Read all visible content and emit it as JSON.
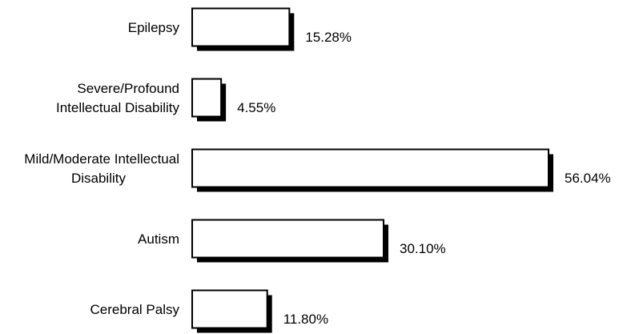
{
  "chart_data": {
    "type": "bar",
    "orientation": "horizontal",
    "categories": [
      [
        "Epilepsy"
      ],
      [
        "Severe/Profound",
        "Intellectual Disability"
      ],
      [
        "Mild/Moderate Intellectual",
        "Disability"
      ],
      [
        "Autism"
      ],
      [
        "Cerebral Palsy"
      ]
    ],
    "values": [
      15.28,
      4.55,
      56.04,
      30.1,
      11.8
    ],
    "value_labels": [
      "15.28%",
      "4.55%",
      "56.04%",
      "30.10%",
      "11.80%"
    ],
    "title": "",
    "xlabel": "",
    "ylabel": "",
    "xlim": [
      0,
      56.04
    ],
    "grid": false,
    "legend": "none",
    "colors": {
      "bar_fill": "#ffffff",
      "bar_stroke": "#000000",
      "bar_shadow": "#000000",
      "text": "#000000"
    }
  }
}
